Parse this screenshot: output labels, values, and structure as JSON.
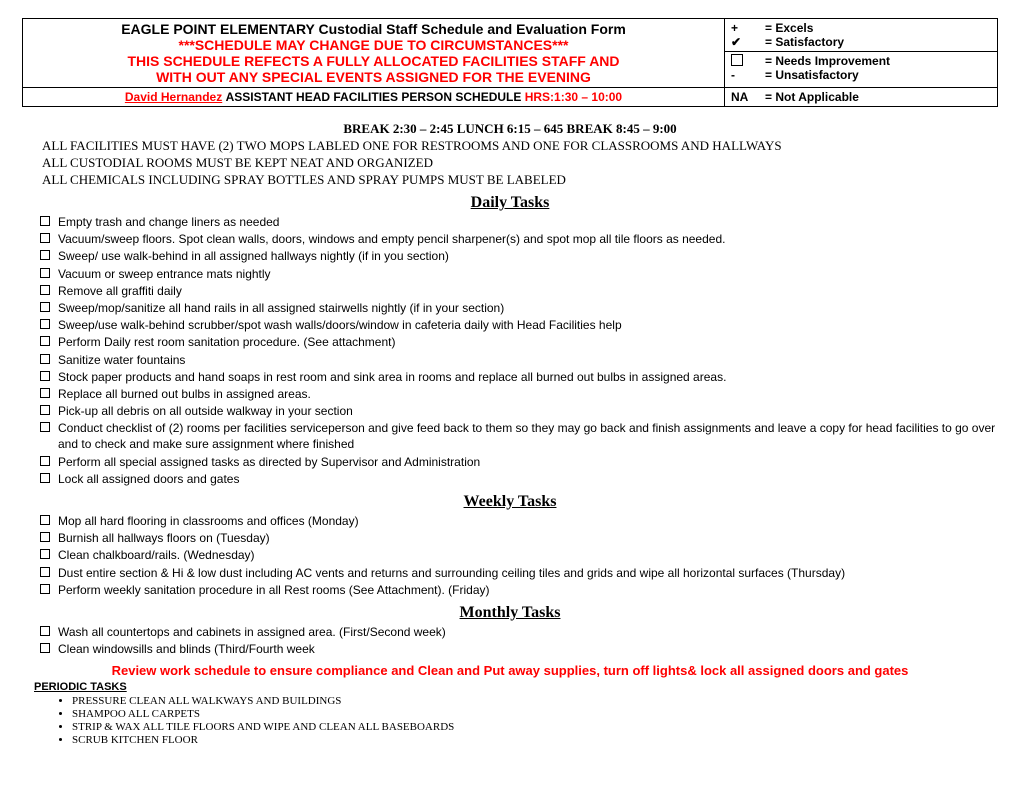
{
  "header": {
    "title": "EAGLE POINT ELEMENTARY Custodial Staff Schedule and Evaluation Form",
    "line1": "***SCHEDULE MAY CHANGE DUE TO CIRCUMSTANCES***",
    "line2": "THIS SCHEDULE REFECTS A FULLY ALLOCATED FACILITIES STAFF AND",
    "line3": "WITH OUT ANY SPECIAL EVENTS ASSIGNED FOR THE EVENING",
    "assistant_name": "David Hernandez",
    "assistant_role": "  ASSISTANT HEAD FACILITIES PERSON SCHEDULE ",
    "assistant_hrs": "HRS:1:30 – 10:00"
  },
  "legend": {
    "excels_sym": "+",
    "excels_txt": "= Excels",
    "sat_sym": "✔",
    "sat_txt": "= Satisfactory",
    "needs_txt": "= Needs Improvement",
    "unsat_sym": "-",
    "unsat_txt": "= Unsatisfactory",
    "na_sym": "NA",
    "na_txt": "= Not Applicable"
  },
  "notes": {
    "break_line": "BREAK 2:30 – 2:45 LUNCH  6:15 – 645 BREAK 8:45 – 9:00",
    "n1": "ALL FACILITIES MUST HAVE (2) TWO MOPS LABLED ONE FOR RESTROOMS AND ONE FOR CLASSROOMS AND HALLWAYS",
    "n2": "ALL CUSTODIAL ROOMS MUST BE KEPT NEAT AND ORGANIZED",
    "n3": "ALL CHEMICALS INCLUDING SPRAY BOTTLES AND SPRAY PUMPS MUST BE LABELED"
  },
  "sections": {
    "daily_title": "Daily Tasks",
    "weekly_title": "Weekly Tasks",
    "monthly_title": "Monthly Tasks",
    "periodic_title": "PERIODIC TASKS"
  },
  "daily": [
    "Empty trash and change liners as needed",
    "Vacuum/sweep floors. Spot clean walls, doors, windows and empty pencil sharpener(s) and spot mop all tile floors as needed.",
    "Sweep/ use walk-behind in all assigned hallways nightly (if in you section)",
    "Vacuum or sweep entrance mats nightly",
    "Remove all graffiti daily",
    "Sweep/mop/sanitize all hand rails in all assigned stairwells nightly (if in your section)",
    "Sweep/use walk-behind scrubber/spot wash walls/doors/window in cafeteria daily with Head Facilities help",
    "Perform Daily rest room sanitation procedure. (See attachment)",
    "Sanitize water fountains",
    "Stock paper products and hand soaps in rest room and sink area in rooms and replace all burned out bulbs in assigned areas.",
    "Replace all burned out bulbs in assigned areas.",
    "Pick-up all debris on all outside walkway in your section",
    "Conduct checklist of (2) rooms per facilities serviceperson and give feed back to them so they may go back and finish assignments and leave a copy for head facilities to go over and to check and make sure assignment where finished",
    " Perform all special assigned tasks as directed by Supervisor and Administration",
    "Lock all assigned doors and gates"
  ],
  "weekly": [
    "Mop all hard flooring in classrooms and offices (Monday)",
    "Burnish all hallways floors on (Tuesday)",
    "Clean chalkboard/rails. (Wednesday)",
    "Dust entire section & Hi & low dust including AC vents and returns and surrounding ceiling tiles and grids and wipe all horizontal surfaces (Thursday)",
    "Perform weekly sanitation procedure in all Rest rooms (See Attachment). (Friday)"
  ],
  "monthly": [
    "Wash all countertops and cabinets in assigned area. (First/Second week)",
    "Clean windowsills and blinds (Third/Fourth week"
  ],
  "review_line": "Review work schedule to ensure compliance and Clean and Put away supplies, turn off lights& lock all assigned doors and gates",
  "periodic": [
    "PRESSURE CLEAN ALL WALKWAYS AND BUILDINGS",
    "SHAMPOO ALL CARPETS",
    "STRIP & WAX ALL TILE FLOORS AND WIPE AND CLEAN ALL BASEBOARDS",
    "SCRUB KITCHEN FLOOR"
  ],
  "colors": {
    "red": "#ff0000",
    "black": "#000000",
    "background": "#ffffff"
  }
}
